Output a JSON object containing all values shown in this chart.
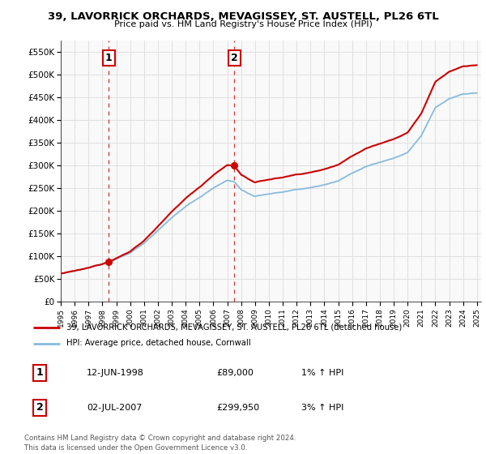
{
  "title": "39, LAVORRICK ORCHARDS, MEVAGISSEY, ST. AUSTELL, PL26 6TL",
  "subtitle": "Price paid vs. HM Land Registry's House Price Index (HPI)",
  "legend_line1": "39, LAVORRICK ORCHARDS, MEVAGISSEY, ST. AUSTELL, PL26 6TL (detached house)",
  "legend_line2": "HPI: Average price, detached house, Cornwall",
  "sale1_label": "1",
  "sale1_date": "12-JUN-1998",
  "sale1_price": "£89,000",
  "sale1_hpi": "1% ↑ HPI",
  "sale2_label": "2",
  "sale2_date": "02-JUL-2007",
  "sale2_price": "£299,950",
  "sale2_hpi": "3% ↑ HPI",
  "footnote": "Contains HM Land Registry data © Crown copyright and database right 2024.\nThis data is licensed under the Open Government Licence v3.0.",
  "sale_color": "#cc0000",
  "hpi_color": "#88bbdd",
  "grid_color": "#e0e0e0",
  "chart_bg": "#f9f9f9",
  "ylim": [
    0,
    575000
  ],
  "yticks": [
    0,
    50000,
    100000,
    150000,
    200000,
    250000,
    300000,
    350000,
    400000,
    450000,
    500000,
    550000
  ],
  "ytick_labels": [
    "£0",
    "£50K",
    "£100K",
    "£150K",
    "£200K",
    "£250K",
    "£300K",
    "£350K",
    "£400K",
    "£450K",
    "£500K",
    "£550K"
  ],
  "sale1_x": 1998.45,
  "sale1_y": 89000,
  "sale2_x": 2007.5,
  "sale2_y": 299950,
  "xlim_left": 1995,
  "xlim_right": 2025.3
}
